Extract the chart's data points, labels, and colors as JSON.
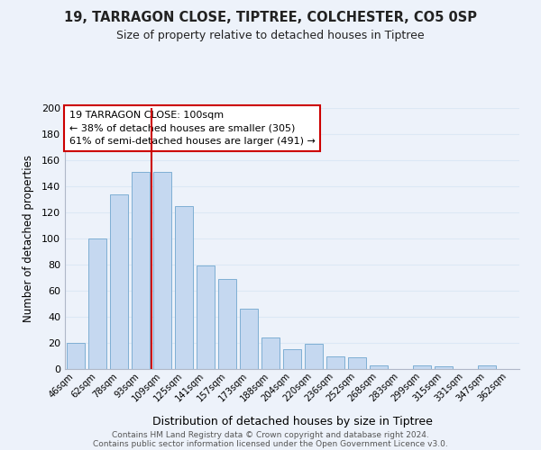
{
  "title1": "19, TARRAGON CLOSE, TIPTREE, COLCHESTER, CO5 0SP",
  "title2": "Size of property relative to detached houses in Tiptree",
  "xlabel": "Distribution of detached houses by size in Tiptree",
  "ylabel": "Number of detached properties",
  "bar_labels": [
    "46sqm",
    "62sqm",
    "78sqm",
    "93sqm",
    "109sqm",
    "125sqm",
    "141sqm",
    "157sqm",
    "173sqm",
    "188sqm",
    "204sqm",
    "220sqm",
    "236sqm",
    "252sqm",
    "268sqm",
    "283sqm",
    "299sqm",
    "315sqm",
    "331sqm",
    "347sqm",
    "362sqm"
  ],
  "bar_values": [
    20,
    100,
    134,
    151,
    151,
    125,
    79,
    69,
    46,
    24,
    15,
    19,
    10,
    9,
    3,
    0,
    3,
    2,
    0,
    3,
    0
  ],
  "bar_color": "#c5d8f0",
  "bar_edge_color": "#7fafd4",
  "ylim": [
    0,
    200
  ],
  "yticks": [
    0,
    20,
    40,
    60,
    80,
    100,
    120,
    140,
    160,
    180,
    200
  ],
  "vline_x_index": 4,
  "vline_color": "#cc0000",
  "annotation_title": "19 TARRAGON CLOSE: 100sqm",
  "annotation_line1": "← 38% of detached houses are smaller (305)",
  "annotation_line2": "61% of semi-detached houses are larger (491) →",
  "annotation_box_color": "#ffffff",
  "annotation_box_edge_color": "#cc0000",
  "footer_line1": "Contains HM Land Registry data © Crown copyright and database right 2024.",
  "footer_line2": "Contains public sector information licensed under the Open Government Licence v3.0.",
  "grid_color": "#dce8f5",
  "bg_color": "#edf2fa"
}
